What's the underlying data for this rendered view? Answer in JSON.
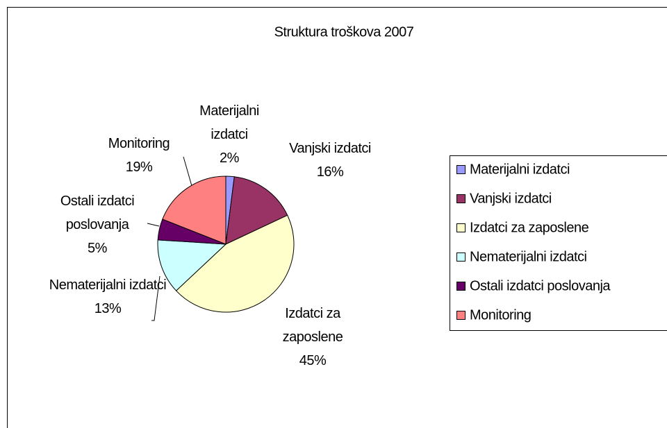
{
  "chart_data": {
    "type": "pie",
    "title": "Struktura troškova 2007",
    "categories": [
      "Materijalni izdatci",
      "Vanjski izdatci",
      "Izdatci za zaposlene",
      "Nematerijalni izdatci",
      "Ostali izdatci poslovanja",
      "Monitoring"
    ],
    "values": [
      2,
      16,
      45,
      13,
      5,
      19
    ],
    "value_labels": [
      "2%",
      "16%",
      "45%",
      "13%",
      "5%",
      "19%"
    ],
    "colors": [
      "#9999ff",
      "#993366",
      "#ffffcc",
      "#ccffff",
      "#660066",
      "#ff8080"
    ],
    "legend": "right"
  }
}
